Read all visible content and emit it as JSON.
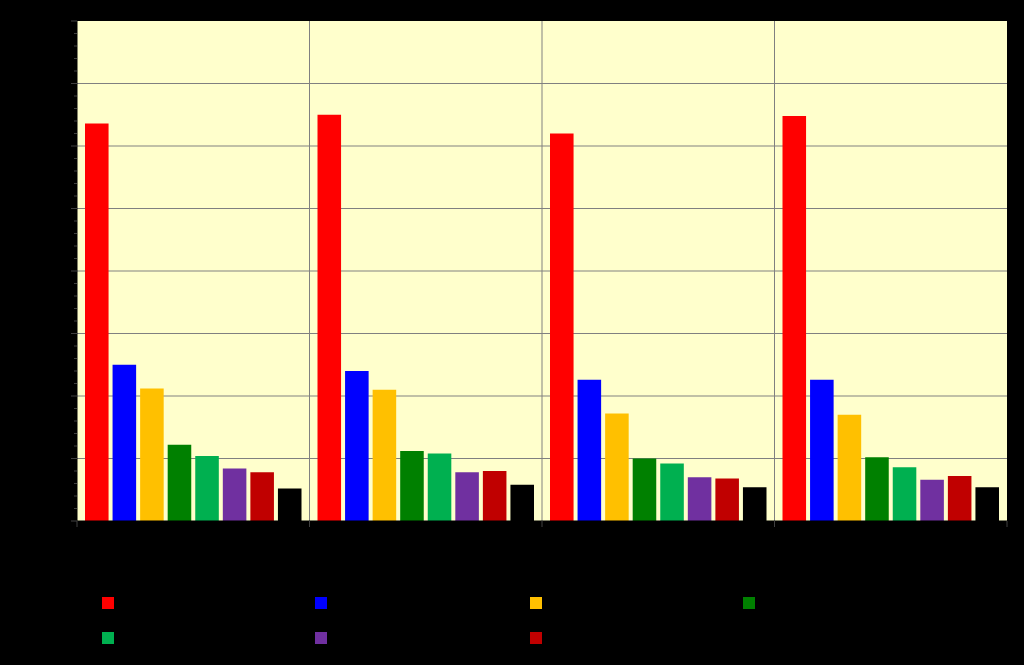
{
  "chart_data": {
    "type": "bar",
    "title": "",
    "xlabel": "",
    "ylabel": "",
    "ylim": [
      0,
      40
    ],
    "grid": true,
    "legend_position": "bottom",
    "plot_background": "#FFFFCC",
    "categories": [
      "",
      "",
      "",
      ""
    ],
    "series": [
      {
        "color": "#FF0000",
        "values": [
          31.8,
          32.5,
          31.0,
          32.4
        ]
      },
      {
        "color": "#0000FF",
        "values": [
          12.5,
          12.0,
          11.3,
          11.3
        ]
      },
      {
        "color": "#FFC000",
        "values": [
          10.6,
          10.5,
          8.6,
          8.5
        ]
      },
      {
        "color": "#008000",
        "values": [
          6.1,
          5.6,
          5.0,
          5.1
        ]
      },
      {
        "color": "#00B050",
        "values": [
          5.2,
          5.4,
          4.6,
          4.3
        ]
      },
      {
        "color": "#7030A0",
        "values": [
          4.2,
          3.9,
          3.5,
          3.3
        ]
      },
      {
        "color": "#C00000",
        "values": [
          3.9,
          4.0,
          3.4,
          3.6
        ]
      },
      {
        "color": "#000000",
        "values": [
          2.6,
          2.9,
          2.7,
          2.7
        ]
      }
    ]
  }
}
